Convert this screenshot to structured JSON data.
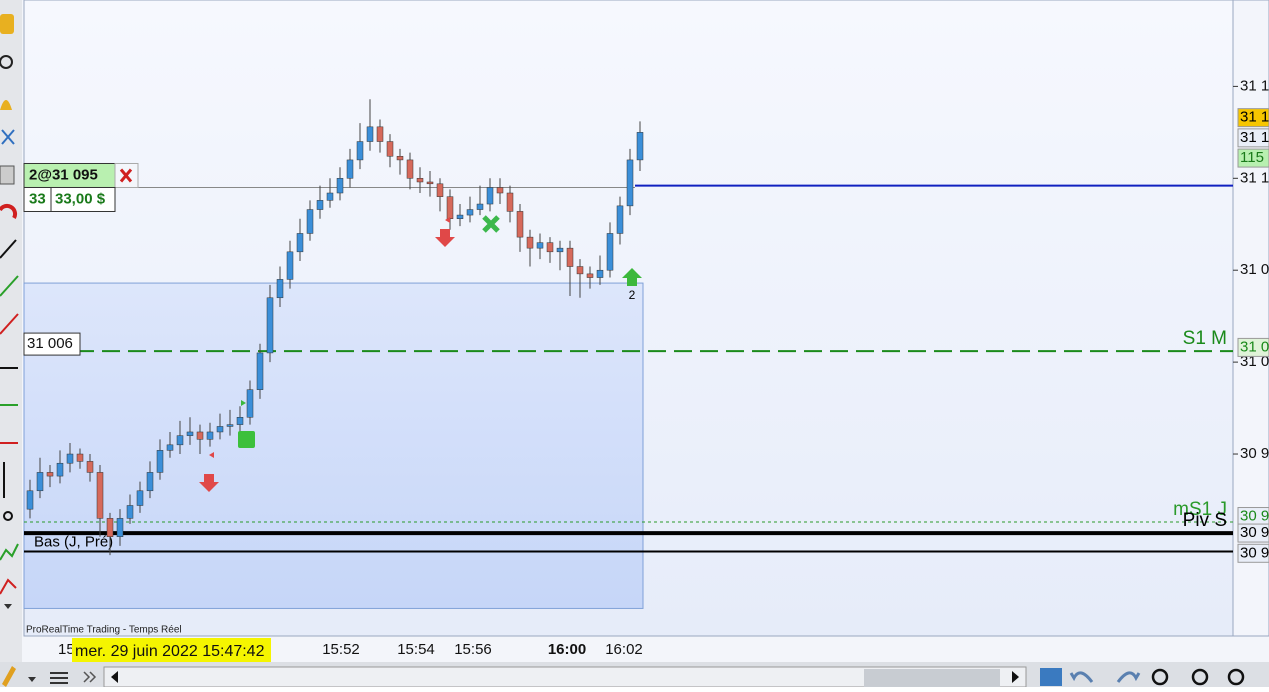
{
  "chart_data": {
    "type": "candlestick",
    "up_color": "#3b8fd9",
    "down_color": "#d6695b",
    "open": [
      30920,
      30930,
      30940,
      30938,
      30945,
      30950,
      30946,
      30940,
      30915,
      30905,
      30915,
      30922,
      30930,
      30940,
      30952,
      30955,
      30960,
      30962,
      30958,
      30962,
      30965,
      30966,
      30970,
      30985,
      31005,
      31035,
      31045,
      31060,
      31070,
      31083,
      31088,
      31092,
      31100,
      31110,
      31120,
      31128,
      31120,
      31112,
      31110,
      31100,
      31098,
      31097,
      31090,
      31078,
      31080,
      31083,
      31086,
      31095,
      31092,
      31082,
      31068,
      31062,
      31065,
      31060,
      31062,
      31052,
      31048,
      31046,
      31050,
      31070,
      31085,
      31110
    ],
    "high": [
      30936,
      30948,
      30944,
      30952,
      30956,
      30953,
      30950,
      30944,
      30918,
      30920,
      30928,
      30935,
      30946,
      30958,
      30962,
      30968,
      30970,
      30966,
      30967,
      30972,
      30974,
      30976,
      30990,
      31010,
      31042,
      31052,
      31066,
      31078,
      31088,
      31096,
      31100,
      31106,
      31116,
      31130,
      31143,
      31132,
      31124,
      31116,
      31114,
      31106,
      31104,
      31100,
      31094,
      31086,
      31090,
      31096,
      31100,
      31100,
      31096,
      31086,
      31072,
      31070,
      31068,
      31066,
      31066,
      31056,
      31052,
      31058,
      31076,
      31090,
      31116,
      31131
    ],
    "low": [
      30915,
      30926,
      30932,
      30934,
      30940,
      30942,
      30935,
      30905,
      30895,
      30900,
      30912,
      30918,
      30926,
      30936,
      30948,
      30950,
      30955,
      30950,
      30954,
      30958,
      30960,
      30962,
      30966,
      30980,
      31000,
      31030,
      31040,
      31055,
      31066,
      31078,
      31084,
      31088,
      31095,
      31105,
      31115,
      31114,
      31106,
      31102,
      31094,
      31092,
      31090,
      31082,
      31072,
      31074,
      31076,
      31080,
      31082,
      31086,
      31076,
      31060,
      31052,
      31056,
      31054,
      31050,
      31036,
      31035,
      31040,
      31042,
      31046,
      31064,
      31080,
      31104
    ],
    "close": [
      30930,
      30940,
      30938,
      30945,
      30950,
      30946,
      30940,
      30915,
      30905,
      30915,
      30922,
      30930,
      30940,
      30952,
      30955,
      30960,
      30962,
      30958,
      30962,
      30965,
      30966,
      30970,
      30985,
      31005,
      31035,
      31045,
      31060,
      31070,
      31083,
      31088,
      31092,
      31100,
      31110,
      31120,
      31128,
      31120,
      31112,
      31110,
      31100,
      31098,
      31097,
      31090,
      31078,
      31080,
      31083,
      31086,
      31095,
      31092,
      31082,
      31068,
      31062,
      31065,
      31060,
      31062,
      31052,
      31048,
      31046,
      31050,
      31070,
      31085,
      31110,
      31125
    ],
    "ylim": [
      30851,
      31197
    ],
    "yticks": [
      {
        "value": 31150,
        "label": "31 1"
      },
      {
        "value": 31100,
        "label": "31 1"
      },
      {
        "value": 31050,
        "label": "31 0"
      },
      {
        "value": 31000,
        "label": "31 0"
      },
      {
        "value": 30950,
        "label": "30 9"
      }
    ],
    "time_labels": [
      "15",
      "15:52",
      "15:54",
      "15:56",
      "16:00",
      "16:02"
    ],
    "price_badges": [
      {
        "label": "31 1",
        "value": 31133,
        "color": "#f7c600",
        "text_color": "#000000"
      },
      {
        "label": "31 1",
        "value": 31122,
        "color": "#e9eef8",
        "text_color": "#000000"
      },
      {
        "label": "115",
        "value": 31111,
        "color": "#b8f0b0",
        "text_color": "#1a7a1a"
      },
      {
        "label": "31 0",
        "value": 31008,
        "color": "#dff3d8",
        "text_color": "#1a8a1a"
      },
      {
        "label": "30 9",
        "value": 30916,
        "color": "#e9eef8",
        "text_color": "#1a8a1a"
      },
      {
        "label": "30 9",
        "value": 30907,
        "color": "#e9eef8",
        "text_color": "#000000"
      },
      {
        "label": "30 9",
        "value": 30896,
        "color": "#e9eef8",
        "text_color": "#000000"
      }
    ],
    "levels": [
      {
        "name": "S1 M",
        "value": 31006,
        "price_label": "31 006",
        "color": "#1a8a1a",
        "style": "dashed",
        "width": 2,
        "label_side": "right"
      },
      {
        "name": "mS1 J",
        "value": 30913,
        "color": "#2a9a2a",
        "style": "dotted",
        "width": 1,
        "label_side": "right"
      },
      {
        "name": "Piv S",
        "value": 30907,
        "color": "#000000",
        "style": "solid",
        "width": 4,
        "label_side": "right"
      },
      {
        "name": "Bas (J, Pré)",
        "value": 30897,
        "color": "#000000",
        "style": "solid",
        "width": 2,
        "label_side": "left"
      }
    ],
    "zone": {
      "top": 31043,
      "bottom": 30866
    },
    "order": {
      "label": "2@31 095",
      "value": 31095,
      "quantity": 33,
      "pnl": "33,00 $"
    },
    "last_price": 31096,
    "signal_label": "2",
    "watermark": "ProRealTime Trading - Temps Réel",
    "cursor_time": "mer. 29 juin 2022 15:47:42"
  }
}
